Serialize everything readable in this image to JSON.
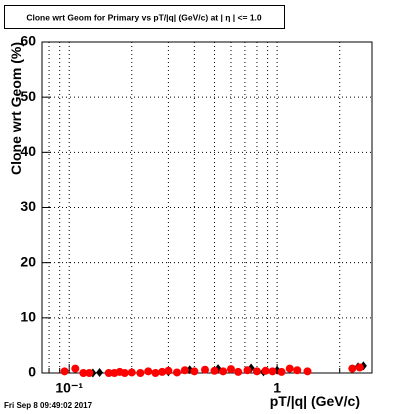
{
  "chart_data": {
    "type": "scatter",
    "title": "Clone wrt Geom for Primary vs pT/|q| (GeV/c) at |  η | <= 1.0",
    "x_label": "pT/|q| (GeV/c)",
    "y_label": "Clone wrt Geom (%)",
    "footer": "Fri Sep  8 09:49:02 2017",
    "xlim": [
      0.074,
      2.86
    ],
    "ylim": [
      0,
      60
    ],
    "log_x": true,
    "grid": true,
    "xticks": [
      {
        "value": 0.1,
        "label": "10⁻¹"
      },
      1
    ],
    "minor_xticks": [
      0.08,
      0.09,
      0.2,
      0.3,
      0.4,
      0.5,
      0.6,
      0.7,
      0.8,
      0.9,
      2
    ],
    "yticks": [
      0,
      10,
      20,
      30,
      40,
      50,
      60
    ],
    "series": [
      {
        "color": "#000000",
        "marker": "diamond",
        "x": [
          0.13,
          0.14,
          0.3,
          0.38,
          0.52,
          0.75,
          0.86,
          1.0,
          2.45,
          2.6
        ],
        "values": [
          0,
          0.1,
          0.2,
          0.6,
          0.8,
          0.9,
          0.2,
          0.5,
          1.1,
          1.3
        ]
      },
      {
        "color": "#ff0000",
        "marker": "circle",
        "x": [
          0.095,
          0.107,
          0.117,
          0.125,
          0.155,
          0.165,
          0.175,
          0.185,
          0.2,
          0.22,
          0.24,
          0.26,
          0.28,
          0.3,
          0.33,
          0.36,
          0.4,
          0.45,
          0.5,
          0.55,
          0.6,
          0.65,
          0.72,
          0.8,
          0.88,
          0.95,
          1.05,
          1.15,
          1.25,
          1.4,
          2.3,
          2.5
        ],
        "values": [
          0.3,
          0.8,
          0,
          0,
          0,
          0,
          0.2,
          0,
          0.1,
          0,
          0.3,
          0,
          0.2,
          0.4,
          0.1,
          0.5,
          0.3,
          0.6,
          0.4,
          0.3,
          0.7,
          0.2,
          0.5,
          0.3,
          0.4,
          0.3,
          0.2,
          0.8,
          0.5,
          0.3,
          0.8,
          1.0
        ]
      }
    ]
  }
}
